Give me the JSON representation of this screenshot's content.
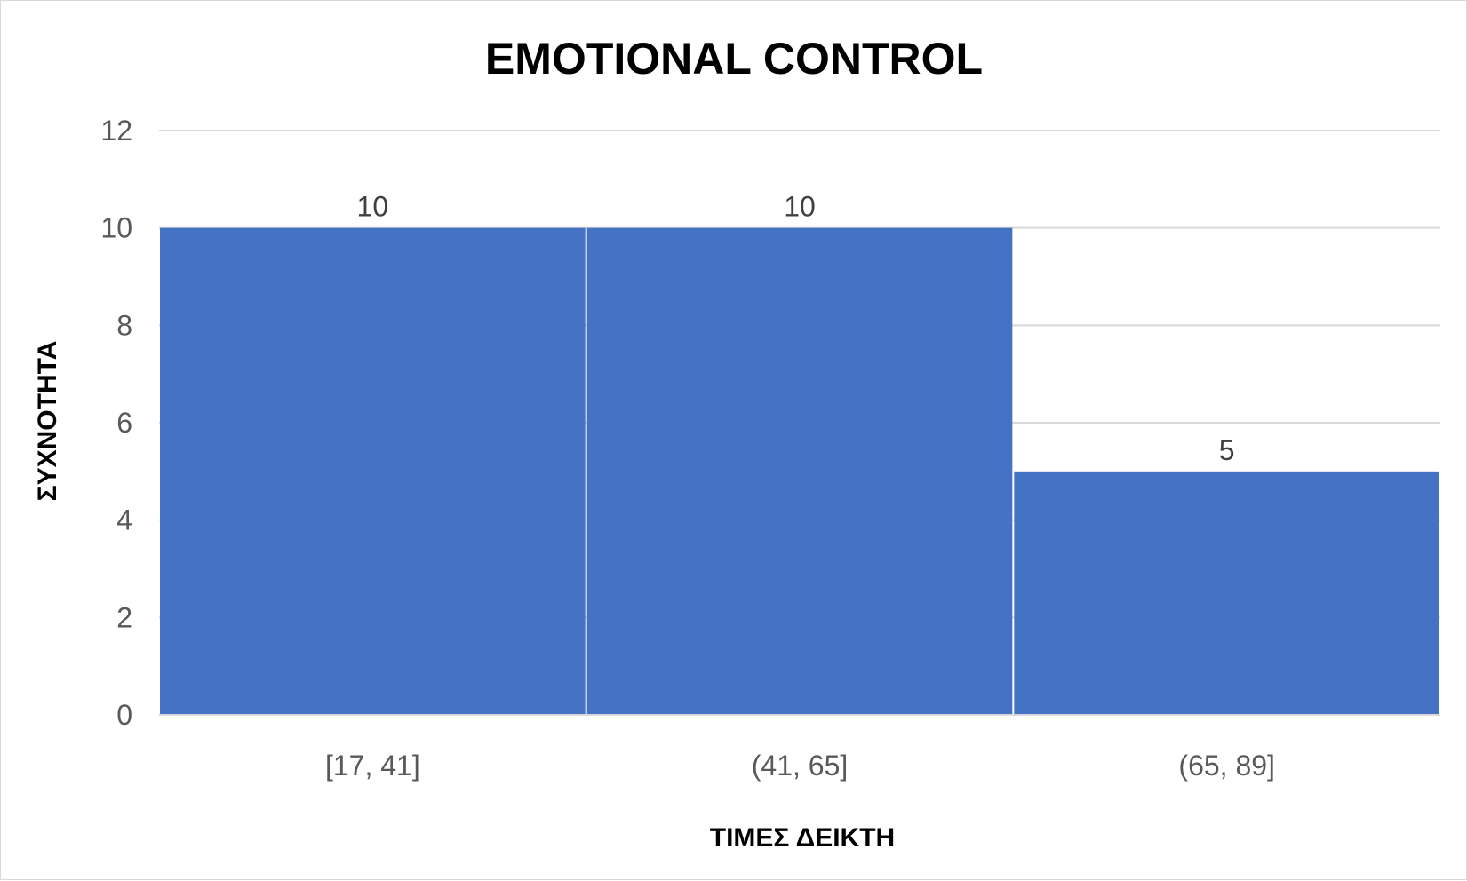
{
  "chart_data": {
    "type": "bar",
    "title": "EMOTIONAL CONTROL",
    "xlabel": "ΤΙΜΕΣ ΔΕΙΚΤΗ",
    "ylabel": "ΣΥΧΝΟΤΗΤΑ",
    "categories": [
      "[17, 41]",
      "(41, 65]",
      "(65, 89]"
    ],
    "values": [
      10,
      10,
      5
    ],
    "data_labels": [
      "10",
      "10",
      "5"
    ],
    "ylim": [
      0,
      12
    ],
    "yticks": [
      0,
      2,
      4,
      6,
      8,
      10,
      12
    ],
    "grid": true,
    "legend": "none",
    "bar_color": "#4472C4",
    "grid_color": "#d9d9d9"
  }
}
